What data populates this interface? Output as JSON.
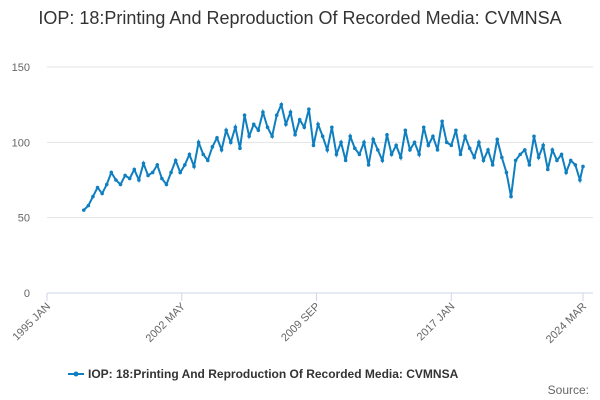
{
  "chart_data": {
    "type": "line",
    "title": "IOP: 18:Printing And Reproduction Of Recorded Media: CVMNSA",
    "x": [
      "1997-01",
      "1997-04",
      "1997-07",
      "1997-10",
      "1998-01",
      "1998-04",
      "1998-07",
      "1998-10",
      "1999-01",
      "1999-04",
      "1999-07",
      "1999-10",
      "2000-01",
      "2000-04",
      "2000-07",
      "2000-10",
      "2001-01",
      "2001-04",
      "2001-07",
      "2001-10",
      "2002-01",
      "2002-04",
      "2002-07",
      "2002-10",
      "2003-01",
      "2003-04",
      "2003-07",
      "2003-10",
      "2004-01",
      "2004-04",
      "2004-07",
      "2004-10",
      "2005-01",
      "2005-04",
      "2005-07",
      "2005-10",
      "2006-01",
      "2006-04",
      "2006-07",
      "2006-10",
      "2007-01",
      "2007-04",
      "2007-07",
      "2007-10",
      "2008-01",
      "2008-04",
      "2008-07",
      "2008-10",
      "2009-01",
      "2009-04",
      "2009-07",
      "2009-10",
      "2010-01",
      "2010-04",
      "2010-07",
      "2010-10",
      "2011-01",
      "2011-04",
      "2011-07",
      "2011-10",
      "2012-01",
      "2012-04",
      "2012-07",
      "2012-10",
      "2013-01",
      "2013-04",
      "2013-07",
      "2013-10",
      "2014-01",
      "2014-04",
      "2014-07",
      "2014-10",
      "2015-01",
      "2015-04",
      "2015-07",
      "2015-10",
      "2016-01",
      "2016-04",
      "2016-07",
      "2016-10",
      "2017-01",
      "2017-04",
      "2017-07",
      "2017-10",
      "2018-01",
      "2018-04",
      "2018-07",
      "2018-10",
      "2019-01",
      "2019-04",
      "2019-07",
      "2019-10",
      "2020-01",
      "2020-04",
      "2020-07",
      "2020-10",
      "2021-01",
      "2021-04",
      "2021-07",
      "2021-10",
      "2022-01",
      "2022-04",
      "2022-07",
      "2022-10",
      "2023-01",
      "2023-04",
      "2023-07",
      "2023-10",
      "2024-01",
      "2024-03"
    ],
    "series": [
      {
        "name": "IOP: 18:Printing And Reproduction Of Recorded Media: CVMNSA",
        "color": "#0f7fc0",
        "values": [
          55,
          58,
          64,
          70,
          66,
          72,
          80,
          75,
          72,
          78,
          76,
          82,
          75,
          86,
          78,
          80,
          85,
          76,
          72,
          80,
          88,
          80,
          85,
          92,
          84,
          100,
          92,
          88,
          97,
          103,
          95,
          108,
          100,
          110,
          96,
          118,
          104,
          112,
          108,
          120,
          110,
          104,
          118,
          125,
          112,
          120,
          105,
          115,
          110,
          122,
          98,
          112,
          104,
          95,
          110,
          92,
          100,
          88,
          104,
          96,
          92,
          100,
          85,
          102,
          95,
          88,
          105,
          92,
          98,
          90,
          108,
          95,
          100,
          92,
          110,
          98,
          104,
          95,
          114,
          100,
          98,
          108,
          92,
          104,
          96,
          90,
          100,
          88,
          95,
          85,
          102,
          90,
          80,
          64,
          88,
          92,
          95,
          85,
          104,
          90,
          98,
          82,
          95,
          88,
          92,
          80,
          88,
          85,
          75,
          84
        ]
      }
    ],
    "xlim": [
      "1995-01",
      "2024-03"
    ],
    "xticks": [
      {
        "value": "1995-01",
        "label": "1995 JAN"
      },
      {
        "value": "2002-05",
        "label": "2002 MAY"
      },
      {
        "value": "2009-09",
        "label": "2009 SEP"
      },
      {
        "value": "2017-01",
        "label": "2017 JAN"
      },
      {
        "value": "2024-03",
        "label": "2024 MAR"
      }
    ],
    "ylim": [
      0,
      150
    ],
    "yticks": [
      0,
      50,
      100,
      150
    ],
    "grid": true,
    "source_label": "Source:"
  }
}
